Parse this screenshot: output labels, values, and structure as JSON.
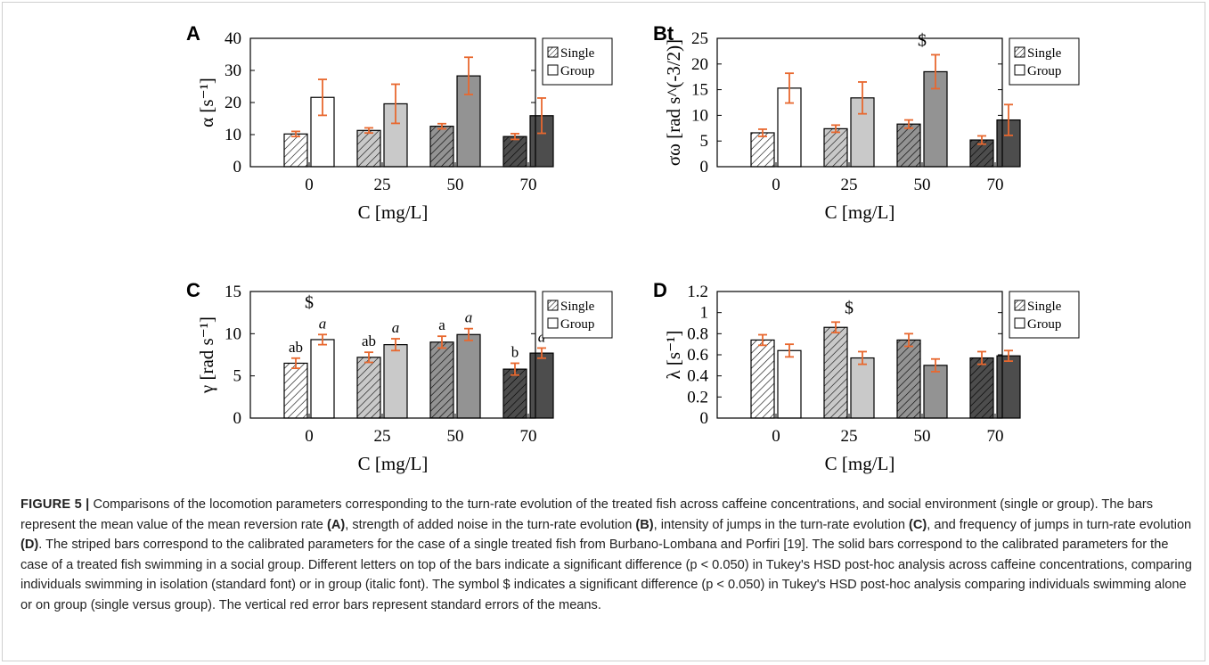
{
  "colors": {
    "error_bar": "#e8682f",
    "bar_0": "#ffffff",
    "bar_25": "#c9c9c9",
    "bar_50": "#939393",
    "bar_70": "#4d4d4d",
    "outline": "#000000"
  },
  "legend": {
    "single": "Single",
    "group": "Group"
  },
  "chart_data": [
    {
      "type": "bar",
      "panel": "A",
      "categories": [
        "0",
        "25",
        "50",
        "70"
      ],
      "xlabel": "C [mg/L]",
      "ylabel": "α [s⁻¹]",
      "ylim": [
        0,
        40
      ],
      "yticks": [
        0,
        10,
        20,
        30,
        40
      ],
      "ytick_labels": [
        "0",
        "10",
        "20",
        "30",
        "40"
      ],
      "series": [
        {
          "name": "Single",
          "values": [
            10.2,
            11.3,
            12.6,
            9.4
          ],
          "errors": [
            0.8,
            0.8,
            0.8,
            0.9
          ]
        },
        {
          "name": "Group",
          "values": [
            21.6,
            19.6,
            28.3,
            15.9
          ],
          "errors": [
            5.6,
            6.1,
            5.8,
            5.5
          ]
        }
      ],
      "labels_single": [
        "",
        "",
        "",
        ""
      ],
      "labels_group": [
        "",
        "",
        "",
        ""
      ],
      "dollar_categories": [],
      "legend_position": "top-right",
      "grid": false
    },
    {
      "type": "bar",
      "panel": "Bt",
      "categories": [
        "0",
        "25",
        "50",
        "70"
      ],
      "xlabel": "C [mg/L]",
      "ylabel": "σω [rad s^(-3/2)]",
      "ylim": [
        0,
        25
      ],
      "yticks": [
        0,
        5,
        10,
        15,
        20,
        25
      ],
      "ytick_labels": [
        "0",
        "5",
        "10",
        "15",
        "20",
        "25"
      ],
      "series": [
        {
          "name": "Single",
          "values": [
            6.6,
            7.4,
            8.3,
            5.2
          ],
          "errors": [
            0.7,
            0.7,
            0.8,
            0.8
          ]
        },
        {
          "name": "Group",
          "values": [
            15.3,
            13.4,
            18.5,
            9.1
          ],
          "errors": [
            2.9,
            3.1,
            3.3,
            3.0
          ]
        }
      ],
      "labels_single": [
        "",
        "",
        "",
        ""
      ],
      "labels_group": [
        "",
        "",
        "",
        ""
      ],
      "dollar_categories": [
        "50"
      ],
      "legend_position": "top-right",
      "grid": false
    },
    {
      "type": "bar",
      "panel": "C",
      "categories": [
        "0",
        "25",
        "50",
        "70"
      ],
      "xlabel": "C [mg/L]",
      "ylabel": "γ [rad s⁻¹]",
      "ylim": [
        0,
        15
      ],
      "yticks": [
        0,
        5,
        10,
        15
      ],
      "ytick_labels": [
        "0",
        "5",
        "10",
        "15"
      ],
      "series": [
        {
          "name": "Single",
          "values": [
            6.5,
            7.2,
            9.0,
            5.8
          ],
          "errors": [
            0.6,
            0.6,
            0.7,
            0.7
          ]
        },
        {
          "name": "Group",
          "values": [
            9.3,
            8.7,
            9.9,
            7.7
          ],
          "errors": [
            0.6,
            0.7,
            0.7,
            0.6
          ]
        }
      ],
      "labels_single": [
        "ab",
        "ab",
        "a",
        "b"
      ],
      "labels_group": [
        "a",
        "a",
        "a",
        "a"
      ],
      "dollar_categories": [
        "0"
      ],
      "legend_position": "top-right",
      "grid": false
    },
    {
      "type": "bar",
      "panel": "D",
      "categories": [
        "0",
        "25",
        "50",
        "70"
      ],
      "xlabel": "C [mg/L]",
      "ylabel": "λ [s⁻¹]",
      "ylim": [
        0,
        1.2
      ],
      "yticks": [
        0,
        0.2,
        0.4,
        0.6,
        0.8,
        1.0,
        1.2
      ],
      "ytick_labels": [
        "0",
        "0.2",
        "0.4",
        "0.6",
        "0.8",
        "1",
        "1.2"
      ],
      "series": [
        {
          "name": "Single",
          "values": [
            0.74,
            0.86,
            0.74,
            0.57
          ],
          "errors": [
            0.05,
            0.05,
            0.06,
            0.06
          ]
        },
        {
          "name": "Group",
          "values": [
            0.64,
            0.57,
            0.5,
            0.59
          ],
          "errors": [
            0.06,
            0.06,
            0.06,
            0.05
          ]
        }
      ],
      "labels_single": [
        "",
        "",
        "",
        ""
      ],
      "labels_group": [
        "",
        "",
        "",
        ""
      ],
      "dollar_categories": [
        "25"
      ],
      "legend_position": "top-right",
      "grid": false
    }
  ],
  "caption": {
    "figure_label": "FIGURE 5 |",
    "p1": " Comparisons of the locomotion parameters corresponding to the turn-rate evolution of the treated fish across caffeine concentrations, and social environment (single or group). The bars represent the mean value of the mean reversion rate ",
    "ref_a": "(A)",
    "p2": ", strength of added noise in the turn-rate evolution ",
    "ref_b": "(B)",
    "p3": ", intensity of jumps in the turn-rate evolution ",
    "ref_c": "(C)",
    "p4": ", and frequency of jumps in turn-rate evolution ",
    "ref_d": "(D)",
    "p5": ". The striped bars correspond to the calibrated parameters for the case of a single treated fish from Burbano-Lombana and Porfiri [19]. The solid bars correspond to the calibrated parameters for the case of a treated fish swimming in a social group. Different letters on top of the bars indicate a significant difference (p < 0.050) in Tukey's HSD post-hoc analysis across caffeine concentrations, comparing individuals swimming in isolation (standard font) or in group (italic font). The symbol $ indicates a significant difference (p < 0.050) in Tukey's HSD post-hoc analysis comparing individuals swimming alone or on group (single versus group). The vertical red error bars represent standard errors of the means."
  }
}
